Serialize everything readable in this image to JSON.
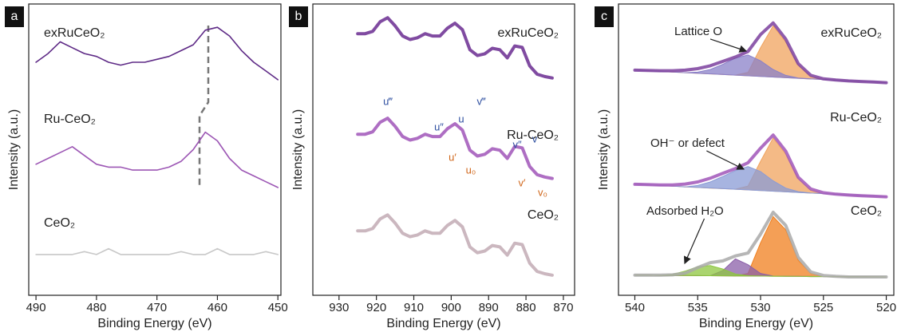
{
  "chart_data": [
    {
      "type": "line",
      "panel_label": "a",
      "xlabel": "Binding Energy (eV)",
      "ylabel": "Intensity (a.u.)",
      "xlim": [
        491.2,
        449.5
      ],
      "xticks": [
        490,
        480,
        470,
        460,
        450
      ],
      "ylim": [
        0,
        100
      ],
      "x": [
        490,
        488,
        486,
        484,
        482,
        480,
        478,
        476,
        474,
        472,
        470,
        468,
        466,
        464,
        462,
        460,
        458,
        456,
        454,
        452,
        450
      ],
      "series": [
        {
          "name": "exRuCeO₂",
          "color": "#5e2a86",
          "values": [
            80,
            83,
            87,
            85,
            83,
            82,
            80,
            79,
            80,
            80,
            81,
            82,
            84,
            86,
            91,
            92,
            89,
            84,
            80,
            77,
            74
          ]
        },
        {
          "name": "Ru-CeO₂",
          "color": "#9c56b4",
          "values": [
            45,
            47,
            49,
            51,
            48,
            45,
            44,
            44,
            43,
            43,
            43,
            44,
            46,
            50,
            56,
            53,
            47,
            43,
            41,
            39,
            37
          ]
        },
        {
          "name": "CeO₂",
          "color": "#c8c8c8",
          "values": [
            14,
            14,
            14,
            14,
            15,
            14,
            16,
            14,
            14,
            14,
            14,
            14,
            15,
            14,
            14,
            16,
            14,
            14,
            14,
            15,
            14
          ]
        }
      ]
    },
    {
      "type": "line",
      "panel_label": "b",
      "xlabel": "Binding Energy (eV)",
      "ylabel": "Intensity (a.u.)",
      "xlim": [
        937,
        867
      ],
      "xticks": [
        930,
        920,
        910,
        900,
        890,
        880,
        870
      ],
      "ylim": [
        0,
        100
      ],
      "x": [
        925,
        923,
        921,
        919,
        917,
        915,
        913,
        911,
        909,
        907,
        905,
        903,
        901,
        899,
        897,
        895,
        893,
        891,
        889,
        887,
        885,
        883,
        881,
        879,
        877,
        875,
        873
      ],
      "series": [
        {
          "name": "exRuCeO₂",
          "color": "#6a2c91",
          "values": [
            89.8,
            89.8,
            90.6,
            93.9,
            95.3,
            92.5,
            89.0,
            87.8,
            88.4,
            89.8,
            89.0,
            89.0,
            91.7,
            93.4,
            91.2,
            84.3,
            82.3,
            82.9,
            84.8,
            84.3,
            81.5,
            85.6,
            85.1,
            78.7,
            75.9,
            75.1,
            74.6
          ]
        },
        {
          "name": "Ru-CeO₂",
          "color": "#a055b8",
          "values": [
            55.3,
            55.3,
            56.1,
            59.4,
            60.8,
            58.0,
            54.5,
            53.3,
            53.9,
            55.3,
            54.5,
            54.5,
            57.2,
            58.9,
            56.7,
            49.8,
            47.8,
            48.4,
            50.3,
            49.8,
            47.0,
            51.1,
            50.6,
            44.2,
            41.4,
            40.6,
            40.1
          ]
        },
        {
          "name": "CeO₂",
          "color": "#c2aab4",
          "values": [
            22.1,
            22.1,
            22.9,
            26.2,
            27.6,
            24.8,
            21.3,
            20.1,
            20.7,
            22.1,
            21.3,
            21.3,
            24.0,
            25.7,
            23.5,
            16.6,
            14.6,
            15.2,
            17.1,
            16.6,
            13.8,
            17.9,
            17.4,
            11.0,
            8.2,
            7.4,
            6.9
          ]
        }
      ],
      "peak_labels": [
        {
          "text": "u‴",
          "color": "#2e4fa0"
        },
        {
          "text": "u″",
          "color": "#2e4fa0"
        },
        {
          "text": "u",
          "color": "#2e4fa0"
        },
        {
          "text": "v‴",
          "color": "#2e4fa0"
        },
        {
          "text": "v″",
          "color": "#2e4fa0"
        },
        {
          "text": "v",
          "color": "#2e4fa0"
        },
        {
          "text": "u′",
          "color": "#d0661a"
        },
        {
          "text": "u₀",
          "color": "#d0661a"
        },
        {
          "text": "v′",
          "color": "#d0661a"
        },
        {
          "text": "v₀",
          "color": "#d0661a"
        }
      ]
    },
    {
      "type": "line",
      "panel_label": "c",
      "xlabel": "Binding Energy (eV)",
      "ylabel": "Intensity (a.u.)",
      "xlim": [
        541.3,
        519.4
      ],
      "xticks": [
        540,
        535,
        530,
        525,
        520
      ],
      "ylim": [
        0,
        100
      ],
      "x": [
        540,
        539,
        538,
        537,
        536,
        535,
        534,
        533,
        532,
        531,
        530,
        529,
        528,
        527,
        526,
        525,
        524,
        523,
        522,
        521,
        520
      ],
      "series": [
        {
          "fill": true,
          "color": "#f0a35e",
          "values": [
            77.3,
            77.1,
            76.9,
            76.7,
            76.4,
            76.2,
            76.0,
            75.8,
            75.6,
            76.5,
            85,
            92.5,
            87,
            79,
            75,
            74.1,
            73.9,
            73.6,
            73.4,
            73.2,
            73.0
          ]
        },
        {
          "fill": true,
          "color": "#8a80c8",
          "values": [
            77.3,
            77.1,
            76.9,
            76.7,
            76.4,
            76.6,
            77.5,
            79.3,
            81.4,
            82.5,
            80.5,
            77.5,
            75.5,
            74.6,
            74.3,
            74.1,
            73.9,
            73.6,
            73.4,
            73.2,
            73.0
          ]
        },
        {
          "name": "exRuCeO₂",
          "color": "#7b3f9e",
          "values": [
            77.3,
            77.2,
            77.1,
            77.1,
            77.3,
            77.8,
            78.8,
            80.3,
            81.8,
            83.7,
            89.5,
            93.5,
            88,
            79.5,
            75.5,
            74.3,
            73.9,
            73.6,
            73.4,
            73.2,
            73.0
          ]
        },
        {
          "fill": true,
          "color": "#f0a35e",
          "values": [
            38.1,
            37.9,
            37.7,
            37.5,
            37.2,
            37.0,
            36.8,
            36.6,
            36.4,
            37.5,
            46,
            54,
            48.5,
            40,
            36,
            34.9,
            34.7,
            34.4,
            34.2,
            34.0,
            33.8
          ]
        },
        {
          "fill": true,
          "color": "#8a9bd6",
          "values": [
            38.1,
            37.9,
            37.7,
            37.5,
            37.2,
            37.7,
            38.9,
            40.8,
            42.8,
            44.2,
            42.5,
            39.3,
            36.8,
            35.6,
            35.1,
            34.9,
            34.7,
            34.4,
            34.2,
            34.0,
            33.8
          ]
        },
        {
          "name": "Ru-CeO₂",
          "color": "#a055b8",
          "values": [
            38.1,
            38.0,
            37.9,
            37.9,
            38.2,
            38.9,
            40.2,
            41.9,
            43.5,
            45.5,
            50.5,
            55,
            49.5,
            40.5,
            36.5,
            35.2,
            34.7,
            34.4,
            34.2,
            34.0,
            33.8
          ]
        },
        {
          "fill": true,
          "color": "#f07f1e",
          "values": [
            6.9,
            6.9,
            6.8,
            6.8,
            6.8,
            6.7,
            6.7,
            6.7,
            6.6,
            7.5,
            18,
            27,
            22.5,
            12,
            7.5,
            6.4,
            6.4,
            6.3,
            6.3,
            6.3,
            6.3
          ]
        },
        {
          "fill": true,
          "color": "#8b5fa8",
          "values": [
            6.9,
            6.9,
            6.8,
            6.8,
            6.8,
            6.7,
            6.7,
            8.5,
            12.5,
            10.5,
            7.5,
            6.6,
            6.5,
            6.5,
            6.4,
            6.4,
            6.4,
            6.3,
            6.3,
            6.3,
            6.3
          ]
        },
        {
          "fill": true,
          "color": "#8dc63f",
          "values": [
            6.9,
            6.9,
            6.8,
            7.2,
            8.3,
            9.8,
            10.2,
            9.0,
            7.3,
            6.7,
            6.6,
            6.5,
            6.5,
            6.5,
            6.4,
            6.4,
            6.4,
            6.3,
            6.3,
            6.3,
            6.3
          ]
        },
        {
          "name": "CeO₂",
          "color": "#a9a9a9",
          "values": [
            6.9,
            6.9,
            6.9,
            7.0,
            7.6,
            9.5,
            11.2,
            11.8,
            13.5,
            14.5,
            21,
            28.5,
            24,
            13,
            8,
            6.8,
            6.5,
            6.3,
            6.3,
            6.3,
            6.3
          ]
        }
      ],
      "annotations": [
        "Lattice O",
        "OH⁻ or defect",
        "Adsorbed H₂O"
      ]
    }
  ]
}
